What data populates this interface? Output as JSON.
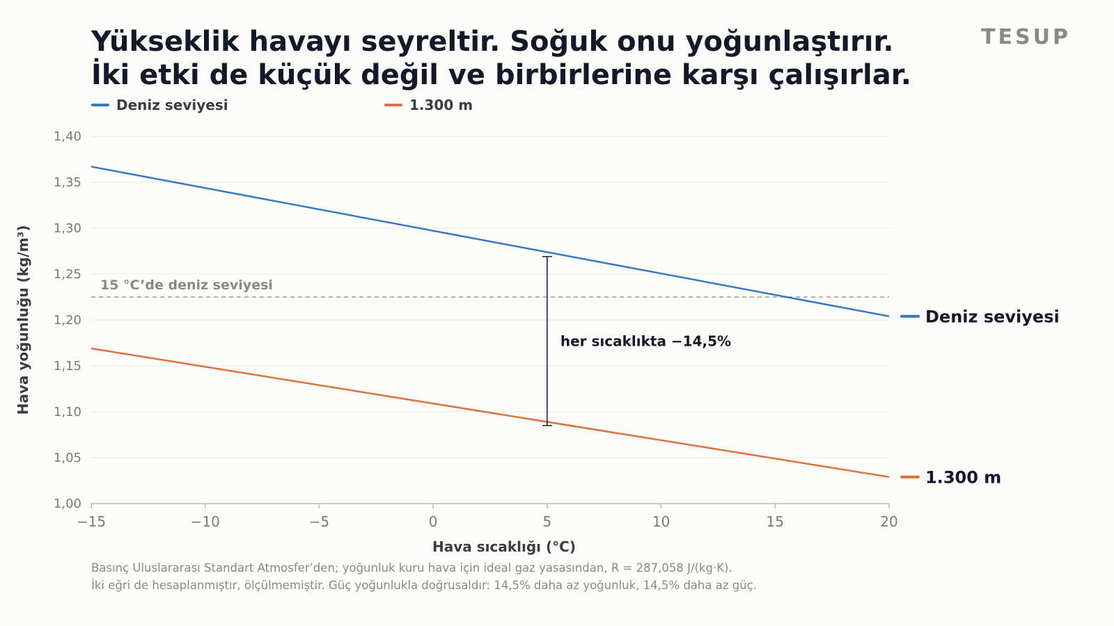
{
  "title_lines": [
    "Yükseklik havayı seyreltir. Soğuk onu yoğunlaştırır.",
    "İki etki de küçük değil ve birbirlerine karşı çalışırlar."
  ],
  "brand": "TESUP",
  "colors": {
    "sea_level": "#3478c6",
    "altitude": "#e0703c",
    "text_dark": "#14192a",
    "muted": "#8a8a84",
    "grid": "#e9e9e6",
    "reference": "#9a9a94",
    "annotation": "#14192a"
  },
  "footnote_lines": [
    "Basınç Uluslararası Standart Atmosfer’den; yoğunluk kuru hava için ideal gaz yasasından, R = 287,058 J/(kg·K).",
    "İki eğri de hesaplanmıştır, ölçülmemiştir. Güç yoğunlukla doğrusaldır: 14,5% daha az yoğunluk, 14,5% daha az güç."
  ],
  "chart_data": {
    "type": "line",
    "xlabel": "Hava sıcaklığı (°C)",
    "ylabel": "Hava yoğunluğu (kg/m³)",
    "xlim": [
      -15,
      20
    ],
    "ylim": [
      1.0,
      1.4
    ],
    "x_ticks": [
      -15,
      -10,
      -5,
      0,
      5,
      10,
      15,
      20
    ],
    "x_tick_labels": [
      "−15",
      "−10",
      "−5",
      "0",
      "5",
      "10",
      "15",
      "20"
    ],
    "y_ticks": [
      1.0,
      1.05,
      1.1,
      1.15,
      1.2,
      1.25,
      1.3,
      1.35,
      1.4
    ],
    "y_tick_labels": [
      "1,00",
      "1,05",
      "1,10",
      "1,15",
      "1,20",
      "1,25",
      "1,30",
      "1,35",
      "1,40"
    ],
    "grid": "horizontal",
    "legend_position": "top-left",
    "series": [
      {
        "name": "Deniz seviyesi",
        "color": "#3478c6",
        "x": [
          -15,
          20
        ],
        "y": [
          1.367,
          1.204
        ]
      },
      {
        "name": "1.300 m",
        "color": "#e0703c",
        "x": [
          -15,
          20
        ],
        "y": [
          1.169,
          1.029
        ]
      }
    ],
    "reference_line": {
      "y": 1.225,
      "label": "15 °C’de deniz seviyesi"
    },
    "annotation": {
      "x": 5,
      "y_top": 1.269,
      "y_bottom": 1.085,
      "text": "her sıcaklıkta −14,5%"
    }
  }
}
